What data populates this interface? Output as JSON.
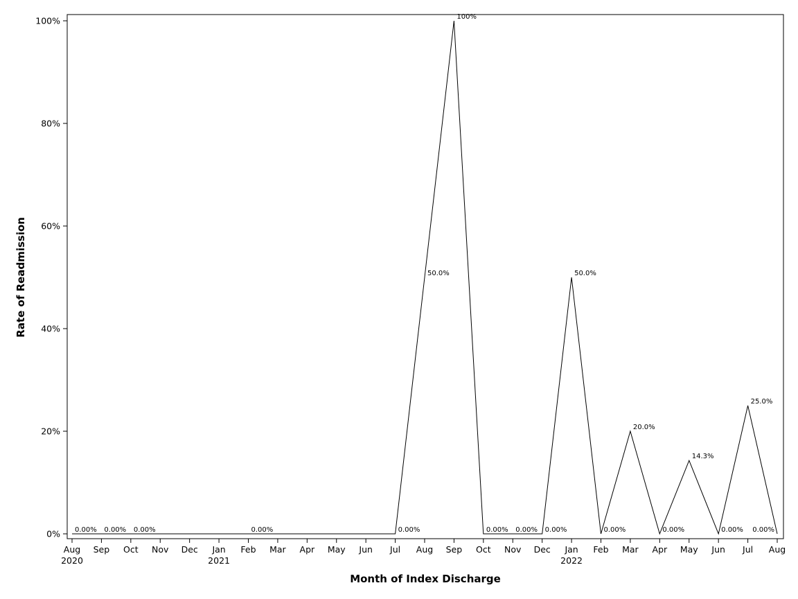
{
  "chart_data": {
    "type": "line",
    "title": "",
    "xlabel": "Month of Index Discharge",
    "ylabel": "Rate of Readmission",
    "x_axis": {
      "type": "date",
      "range": [
        "2020-08",
        "2022-08"
      ],
      "ticks": [
        {
          "date": "2020-08",
          "label": "Aug",
          "year": "2020"
        },
        {
          "date": "2020-09",
          "label": "Sep"
        },
        {
          "date": "2020-10",
          "label": "Oct"
        },
        {
          "date": "2020-11",
          "label": "Nov"
        },
        {
          "date": "2020-12",
          "label": "Dec"
        },
        {
          "date": "2021-01",
          "label": "Jan",
          "year": "2021"
        },
        {
          "date": "2021-02",
          "label": "Feb"
        },
        {
          "date": "2021-03",
          "label": "Mar"
        },
        {
          "date": "2021-04",
          "label": "Apr"
        },
        {
          "date": "2021-05",
          "label": "May"
        },
        {
          "date": "2021-06",
          "label": "Jun"
        },
        {
          "date": "2021-07",
          "label": "Jul"
        },
        {
          "date": "2021-08",
          "label": "Aug"
        },
        {
          "date": "2021-09",
          "label": "Sep"
        },
        {
          "date": "2021-10",
          "label": "Oct"
        },
        {
          "date": "2021-11",
          "label": "Nov"
        },
        {
          "date": "2021-12",
          "label": "Dec"
        },
        {
          "date": "2022-01",
          "label": "Jan",
          "year": "2022"
        },
        {
          "date": "2022-02",
          "label": "Feb"
        },
        {
          "date": "2022-03",
          "label": "Mar"
        },
        {
          "date": "2022-04",
          "label": "Apr"
        },
        {
          "date": "2022-05",
          "label": "May"
        },
        {
          "date": "2022-06",
          "label": "Jun"
        },
        {
          "date": "2022-07",
          "label": "Jul"
        },
        {
          "date": "2022-08",
          "label": "Aug"
        }
      ]
    },
    "y_axis": {
      "range": [
        0,
        100
      ],
      "ticks": [
        {
          "value": 0,
          "label": "0%"
        },
        {
          "value": 20,
          "label": "20%"
        },
        {
          "value": 40,
          "label": "40%"
        },
        {
          "value": 60,
          "label": "60%"
        },
        {
          "value": 80,
          "label": "80%"
        },
        {
          "value": 100,
          "label": "100%"
        }
      ]
    },
    "grid": false,
    "legend": "none",
    "series": [
      {
        "color": "#000000",
        "points": [
          {
            "x": "2020-08",
            "y": 0,
            "label": "0.00%"
          },
          {
            "x": "2020-09",
            "y": 0,
            "label": "0.00%"
          },
          {
            "x": "2020-10",
            "y": 0,
            "label": "0.00%"
          },
          {
            "x": "2021-02",
            "y": 0,
            "label": "0.00%"
          },
          {
            "x": "2021-07",
            "y": 0,
            "label": "0.00%"
          },
          {
            "x": "2021-08",
            "y": 50,
            "label": "50.0%"
          },
          {
            "x": "2021-09",
            "y": 100,
            "label": "100%"
          },
          {
            "x": "2021-10",
            "y": 0,
            "label": "0.00%"
          },
          {
            "x": "2021-11",
            "y": 0,
            "label": "0.00%"
          },
          {
            "x": "2021-12",
            "y": 0,
            "label": "0.00%"
          },
          {
            "x": "2022-01",
            "y": 50,
            "label": "50.0%"
          },
          {
            "x": "2022-02",
            "y": 0,
            "label": "0.00%"
          },
          {
            "x": "2022-03",
            "y": 20,
            "label": "20.0%"
          },
          {
            "x": "2022-04",
            "y": 0,
            "label": "0.00%"
          },
          {
            "x": "2022-05",
            "y": 14.3,
            "label": "14.3%"
          },
          {
            "x": "2022-06",
            "y": 0,
            "label": "0.00%"
          },
          {
            "x": "2022-07",
            "y": 25,
            "label": "25.0%"
          },
          {
            "x": "2022-08",
            "y": 0,
            "label": "0.00%"
          }
        ]
      }
    ]
  }
}
